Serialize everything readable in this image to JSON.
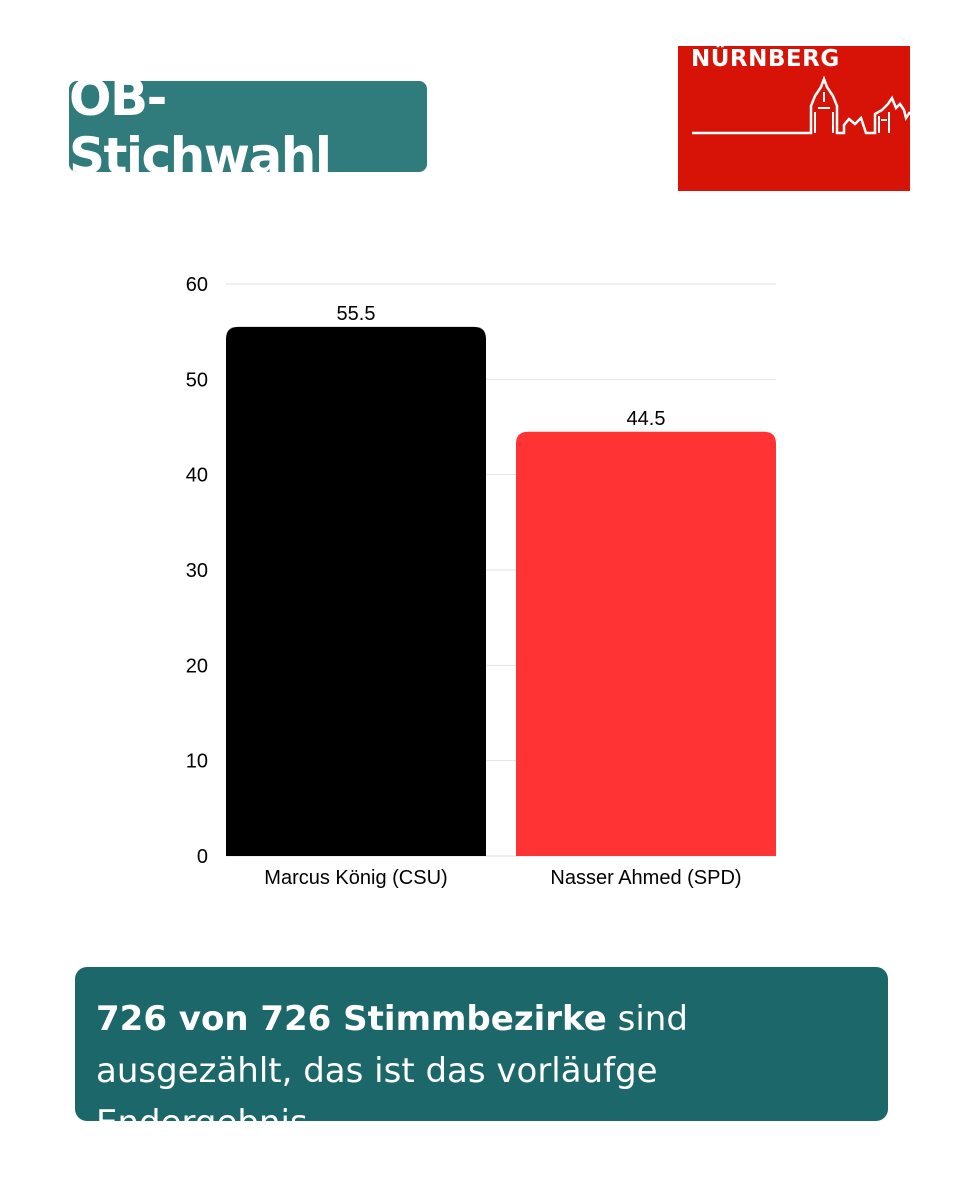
{
  "header": {
    "title": "OB-Stichwahl",
    "logo_text": "NÜRNBERG",
    "logo_color": "#d61306",
    "badge_color": "#307b7b"
  },
  "chart_data": {
    "type": "bar",
    "categories": [
      "Marcus König (CSU)",
      "Nasser Ahmed (SPD)"
    ],
    "values": [
      55.5,
      44.5
    ],
    "data_labels": [
      "55.5",
      "44.5"
    ],
    "colors": [
      "#000000",
      "#ff3333"
    ],
    "ylim": [
      0,
      60
    ],
    "yticks": [
      0,
      10,
      20,
      30,
      40,
      50,
      60
    ],
    "grid": true,
    "title": "",
    "xlabel": "",
    "ylabel": ""
  },
  "footer": {
    "bold_text": "726 von 726 Stimmbezirke",
    "text": " sind ausgezählt, das ist das vorläufge Endergebnis.",
    "box_color": "#1c676a"
  }
}
